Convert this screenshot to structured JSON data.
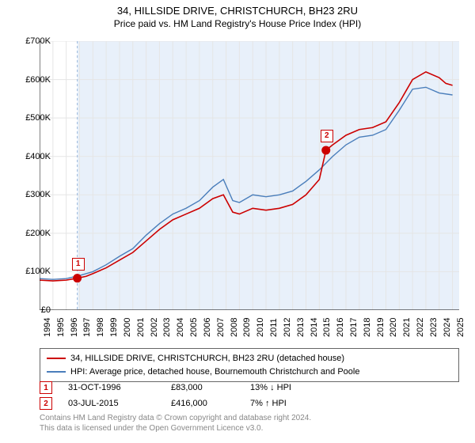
{
  "title": "34, HILLSIDE DRIVE, CHRISTCHURCH, BH23 2RU",
  "subtitle": "Price paid vs. HM Land Registry's House Price Index (HPI)",
  "chart": {
    "type": "line",
    "background_color": "#ffffff",
    "hpi_band_color": "#e8f0fa",
    "grid_color": "#e5e5e5",
    "axis_color": "#000000",
    "xlim": [
      1994,
      2025.5
    ],
    "ylim": [
      0,
      700000
    ],
    "ytick_step": 100000,
    "yticks": [
      "£0",
      "£100K",
      "£200K",
      "£300K",
      "£400K",
      "£500K",
      "£600K",
      "£700K"
    ],
    "xticks": [
      1994,
      1995,
      1996,
      1997,
      1998,
      1999,
      2000,
      2001,
      2002,
      2003,
      2004,
      2005,
      2006,
      2007,
      2008,
      2009,
      2010,
      2011,
      2012,
      2013,
      2014,
      2015,
      2016,
      2017,
      2018,
      2019,
      2020,
      2021,
      2022,
      2023,
      2024,
      2025
    ],
    "series": [
      {
        "name": "price_paid",
        "label": "34, HILLSIDE DRIVE, CHRISTCHURCH, BH23 2RU (detached house)",
        "color": "#cc0000",
        "line_width": 1.6,
        "points": [
          [
            1994,
            78000
          ],
          [
            1995,
            76000
          ],
          [
            1996,
            78000
          ],
          [
            1996.83,
            83000
          ],
          [
            1997.5,
            88000
          ],
          [
            1998,
            95000
          ],
          [
            1999,
            110000
          ],
          [
            2000,
            130000
          ],
          [
            2001,
            150000
          ],
          [
            2002,
            180000
          ],
          [
            2003,
            210000
          ],
          [
            2004,
            235000
          ],
          [
            2005,
            250000
          ],
          [
            2006,
            265000
          ],
          [
            2007,
            290000
          ],
          [
            2007.8,
            300000
          ],
          [
            2008.5,
            255000
          ],
          [
            2009,
            250000
          ],
          [
            2010,
            265000
          ],
          [
            2011,
            260000
          ],
          [
            2012,
            265000
          ],
          [
            2013,
            275000
          ],
          [
            2014,
            300000
          ],
          [
            2015,
            340000
          ],
          [
            2015.5,
            416000
          ],
          [
            2016,
            430000
          ],
          [
            2017,
            455000
          ],
          [
            2018,
            470000
          ],
          [
            2019,
            475000
          ],
          [
            2020,
            490000
          ],
          [
            2021,
            540000
          ],
          [
            2022,
            600000
          ],
          [
            2023,
            620000
          ],
          [
            2024,
            605000
          ],
          [
            2024.5,
            590000
          ],
          [
            2025,
            585000
          ]
        ]
      },
      {
        "name": "hpi",
        "label": "HPI: Average price, detached house, Bournemouth Christchurch and Poole",
        "color": "#4a7ebb",
        "line_width": 1.4,
        "points": [
          [
            1994,
            82000
          ],
          [
            1995,
            80000
          ],
          [
            1996,
            82000
          ],
          [
            1997,
            90000
          ],
          [
            1998,
            100000
          ],
          [
            1999,
            118000
          ],
          [
            2000,
            140000
          ],
          [
            2001,
            160000
          ],
          [
            2002,
            195000
          ],
          [
            2003,
            225000
          ],
          [
            2004,
            250000
          ],
          [
            2005,
            265000
          ],
          [
            2006,
            285000
          ],
          [
            2007,
            320000
          ],
          [
            2007.8,
            340000
          ],
          [
            2008.5,
            285000
          ],
          [
            2009,
            280000
          ],
          [
            2010,
            300000
          ],
          [
            2011,
            295000
          ],
          [
            2012,
            300000
          ],
          [
            2013,
            310000
          ],
          [
            2014,
            335000
          ],
          [
            2015,
            365000
          ],
          [
            2016,
            400000
          ],
          [
            2017,
            430000
          ],
          [
            2018,
            450000
          ],
          [
            2019,
            455000
          ],
          [
            2020,
            470000
          ],
          [
            2021,
            520000
          ],
          [
            2022,
            575000
          ],
          [
            2023,
            580000
          ],
          [
            2024,
            565000
          ],
          [
            2025,
            560000
          ]
        ]
      }
    ],
    "markers": [
      {
        "id": "1",
        "x": 1996.83,
        "y": 83000
      },
      {
        "id": "2",
        "x": 2015.5,
        "y": 416000
      }
    ],
    "marker_color": "#cc0000",
    "marker_fill": "#cc0000",
    "marker_size": 5
  },
  "legend": {
    "series1": "34, HILLSIDE DRIVE, CHRISTCHURCH, BH23 2RU (detached house)",
    "series2": "HPI: Average price, detached house, Bournemouth Christchurch and Poole"
  },
  "sales": [
    {
      "id": "1",
      "date": "31-OCT-1996",
      "price": "£83,000",
      "hpi": "13% ↓ HPI"
    },
    {
      "id": "2",
      "date": "03-JUL-2015",
      "price": "£416,000",
      "hpi": "7% ↑ HPI"
    }
  ],
  "footer_line1": "Contains HM Land Registry data © Crown copyright and database right 2024.",
  "footer_line2": "This data is licensed under the Open Government Licence v3.0."
}
